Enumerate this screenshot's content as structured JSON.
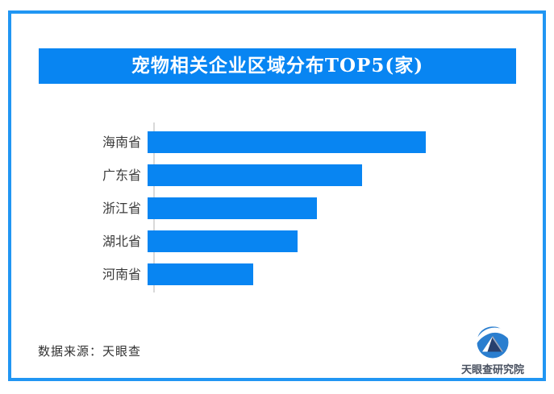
{
  "frame": {
    "border_color": "#2196F3"
  },
  "title": {
    "text": "宠物相关企业区域分布TOP5(家)",
    "bg_color": "#0885F2",
    "text_color": "#FFFFFF"
  },
  "chart_data": {
    "type": "bar",
    "orientation": "horizontal",
    "title": "宠物相关企业区域分布TOP5(家)",
    "categories": [
      "海南省",
      "广东省",
      "浙江省",
      "湖北省",
      "河南省"
    ],
    "values": [
      100,
      77,
      61,
      54,
      38
    ],
    "values_note": "no numeric labels shown in image; values are bar lengths normalized to longest bar = 100",
    "value_labels_shown": false,
    "grid": false,
    "bar_color": "#0885F2",
    "axis_color": "#D9D9D9",
    "label_color": "#3B3B3B"
  },
  "footer": {
    "source_text": "数据来源：天眼查"
  },
  "logo": {
    "text": "天眼查研究院",
    "text_color": "#495160",
    "mark_primary_color": "#2A7ECF",
    "mark_dark_color": "#28406D"
  }
}
